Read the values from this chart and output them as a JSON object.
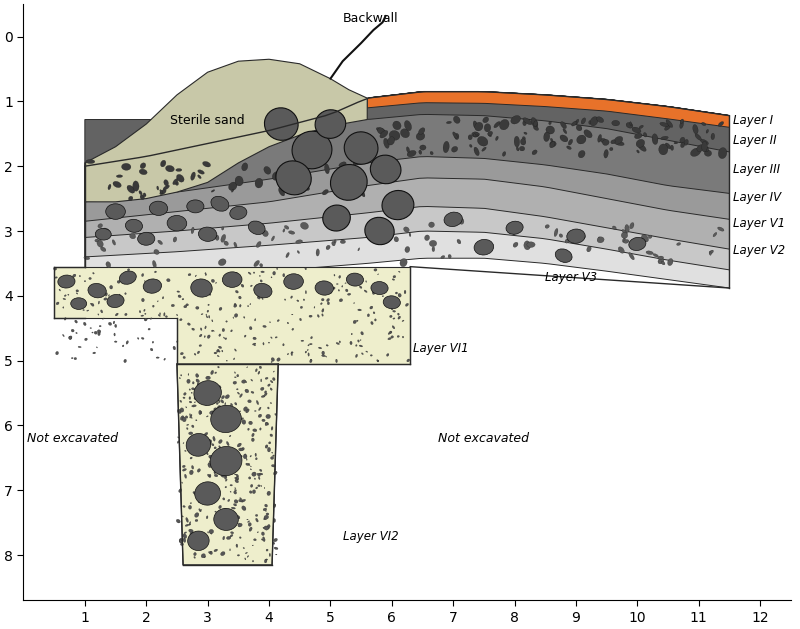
{
  "xlim": [
    0,
    12.5
  ],
  "ylim": [
    8.7,
    -0.5
  ],
  "xticks": [
    1,
    2,
    3,
    4,
    5,
    6,
    7,
    8,
    9,
    10,
    11,
    12
  ],
  "yticks": [
    0,
    1,
    2,
    3,
    4,
    5,
    6,
    7,
    8
  ],
  "figsize": [
    8.0,
    6.29
  ],
  "dpi": 100,
  "colors": {
    "layer_I": "#E8722A",
    "layer_II": "#636363",
    "layer_III": "#7A7A7A",
    "layer_IV": "#9A9A9A",
    "layer_V1": "#B0B0B0",
    "layer_V2": "#C8C8C8",
    "layer_V3": "#E0E0E0",
    "sterile_sand": "#C8C8A8",
    "layer_VI1": "#EEEECC",
    "layer_VI2": "#EEEECC",
    "rocks_dark": "#5A5A5A",
    "rocks_med": "#666666",
    "outline": "#2A2A2A",
    "backwall": "#111111",
    "background": "#ffffff"
  },
  "labels": {
    "backwall": "Backwall",
    "sterile_sand": "Sterile sand",
    "layer_I": "Layer I",
    "layer_II": "Layer II",
    "layer_III": "Layer III",
    "layer_IV": "Layer IV",
    "layer_V1": "Layer V1",
    "layer_V2": "Layer V2",
    "layer_V3": "Layer V3",
    "layer_VI1": "Layer VI1",
    "layer_VI2": "Layer VI2",
    "not_excavated_left": "Not excavated",
    "not_excavated_right": "Not excavated"
  },
  "layer_I_top": [
    [
      5.6,
      0.95
    ],
    [
      6.5,
      0.85
    ],
    [
      7.5,
      0.85
    ],
    [
      8.5,
      0.9
    ],
    [
      9.5,
      0.97
    ],
    [
      10.5,
      1.08
    ],
    [
      11.5,
      1.22
    ]
  ],
  "layer_I_bot": [
    [
      5.6,
      1.1
    ],
    [
      6.5,
      1.02
    ],
    [
      7.5,
      1.03
    ],
    [
      8.5,
      1.08
    ],
    [
      9.5,
      1.15
    ],
    [
      10.5,
      1.27
    ],
    [
      11.5,
      1.4
    ]
  ],
  "layer_II_bot": [
    [
      5.6,
      1.28
    ],
    [
      6.5,
      1.2
    ],
    [
      7.5,
      1.22
    ],
    [
      8.5,
      1.3
    ],
    [
      9.5,
      1.42
    ],
    [
      10.5,
      1.6
    ],
    [
      11.5,
      1.78
    ]
  ],
  "layer_III_bot": [
    [
      1.0,
      2.55
    ],
    [
      2.5,
      2.4
    ],
    [
      4.0,
      2.2
    ],
    [
      5.6,
      1.95
    ],
    [
      6.5,
      1.85
    ],
    [
      7.5,
      1.88
    ],
    [
      8.5,
      1.98
    ],
    [
      9.5,
      2.12
    ],
    [
      10.5,
      2.3
    ],
    [
      11.5,
      2.42
    ]
  ],
  "layer_IV_bot": [
    [
      1.0,
      2.85
    ],
    [
      2.5,
      2.7
    ],
    [
      4.0,
      2.55
    ],
    [
      5.6,
      2.3
    ],
    [
      6.5,
      2.18
    ],
    [
      7.5,
      2.2
    ],
    [
      8.5,
      2.32
    ],
    [
      9.5,
      2.5
    ],
    [
      10.5,
      2.68
    ],
    [
      11.5,
      2.82
    ]
  ],
  "layer_V1_bot": [
    [
      1.0,
      3.1
    ],
    [
      2.5,
      3.0
    ],
    [
      4.0,
      2.88
    ],
    [
      5.6,
      2.72
    ],
    [
      6.5,
      2.62
    ],
    [
      7.5,
      2.65
    ],
    [
      8.5,
      2.78
    ],
    [
      9.5,
      2.95
    ],
    [
      10.5,
      3.12
    ],
    [
      11.5,
      3.28
    ]
  ],
  "layer_V2_bot": [
    [
      1.0,
      3.4
    ],
    [
      2.5,
      3.32
    ],
    [
      4.0,
      3.22
    ],
    [
      5.6,
      3.1
    ],
    [
      6.5,
      3.0
    ],
    [
      7.5,
      3.02
    ],
    [
      8.5,
      3.12
    ],
    [
      9.5,
      3.28
    ],
    [
      10.5,
      3.45
    ],
    [
      11.5,
      3.6
    ]
  ],
  "layer_V3_bot": [
    [
      1.0,
      3.9
    ],
    [
      2.5,
      3.75
    ],
    [
      4.0,
      3.62
    ],
    [
      5.6,
      3.5
    ],
    [
      6.5,
      3.42
    ],
    [
      7.5,
      3.42
    ],
    [
      8.5,
      3.5
    ],
    [
      9.5,
      3.62
    ],
    [
      10.5,
      3.75
    ],
    [
      11.5,
      3.88
    ]
  ]
}
